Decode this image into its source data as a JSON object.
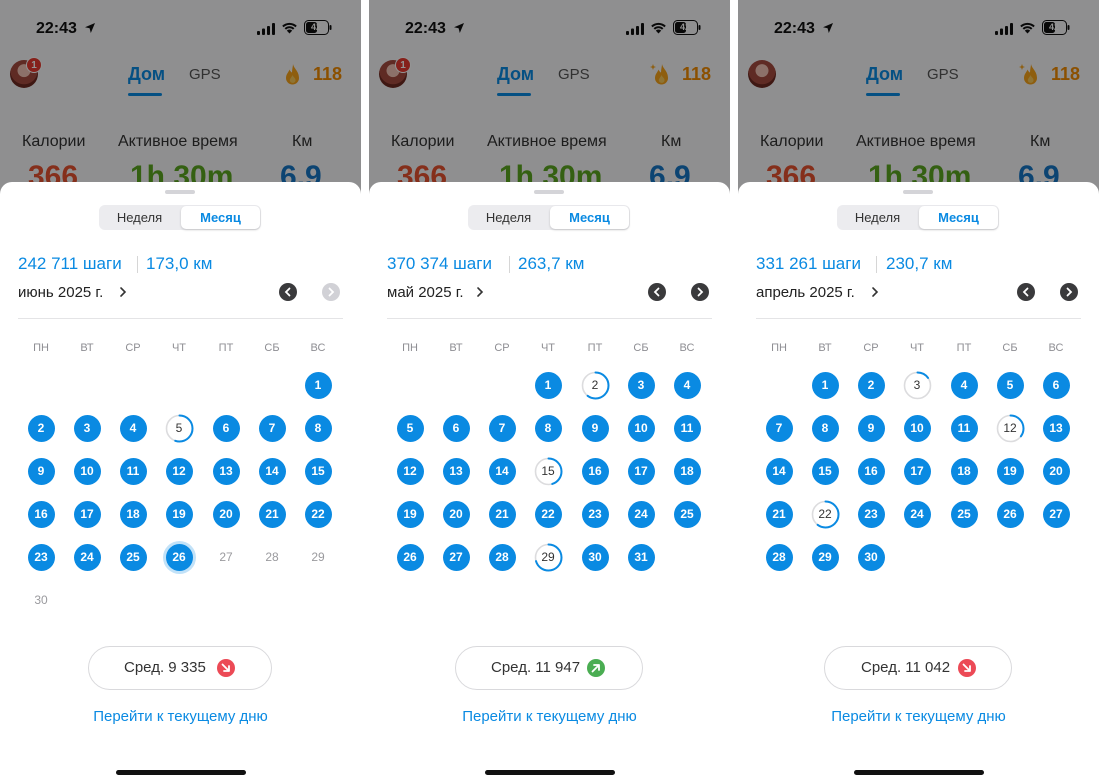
{
  "colors": {
    "accent": "#0a8ae2",
    "calories": "#e6512f",
    "active": "#5aa61f",
    "km": "#1676c4",
    "down_badge": "#ec4a56",
    "up_badge": "#4aad52"
  },
  "screens": [
    {
      "status": {
        "time": "22:43",
        "battery": "42"
      },
      "header": {
        "tab_home": "Дом",
        "tab_gps": "GPS",
        "streak": "118",
        "avatar_badge": "1",
        "flame_icon": "flame-icon"
      },
      "metrics": {
        "calories_label": "Калории",
        "calories_value": "366",
        "active_label": "Активное время",
        "active_value": "1h 30m",
        "km_label": "Км",
        "km_value": "6,9"
      },
      "sheet": {
        "seg_week": "Неделя",
        "seg_month": "Месяц",
        "steps": "242 711 шаги",
        "km": "173,0 км",
        "month": "июнь 2025 г.",
        "next_enabled": false,
        "weekdays": [
          "ПН",
          "ВТ",
          "СР",
          "ЧТ",
          "ПТ",
          "СБ",
          "ВС"
        ],
        "start_offset": 6,
        "days": [
          {
            "d": "1",
            "s": "done"
          },
          {
            "d": "2",
            "s": "done"
          },
          {
            "d": "3",
            "s": "done"
          },
          {
            "d": "4",
            "s": "done"
          },
          {
            "d": "5",
            "s": "partial",
            "p": 0.55
          },
          {
            "d": "6",
            "s": "done"
          },
          {
            "d": "7",
            "s": "done"
          },
          {
            "d": "8",
            "s": "done"
          },
          {
            "d": "9",
            "s": "done"
          },
          {
            "d": "10",
            "s": "done"
          },
          {
            "d": "11",
            "s": "done"
          },
          {
            "d": "12",
            "s": "done"
          },
          {
            "d": "13",
            "s": "done"
          },
          {
            "d": "14",
            "s": "done"
          },
          {
            "d": "15",
            "s": "done"
          },
          {
            "d": "16",
            "s": "done"
          },
          {
            "d": "17",
            "s": "done"
          },
          {
            "d": "18",
            "s": "done"
          },
          {
            "d": "19",
            "s": "done"
          },
          {
            "d": "20",
            "s": "done"
          },
          {
            "d": "21",
            "s": "done"
          },
          {
            "d": "22",
            "s": "done"
          },
          {
            "d": "23",
            "s": "done"
          },
          {
            "d": "24",
            "s": "done"
          },
          {
            "d": "25",
            "s": "done"
          },
          {
            "d": "26",
            "s": "today"
          },
          {
            "d": "27",
            "s": "future"
          },
          {
            "d": "28",
            "s": "future"
          },
          {
            "d": "29",
            "s": "future"
          },
          {
            "d": "30",
            "s": "future"
          }
        ],
        "avg": "Сред. 9 335",
        "trend": "down",
        "goto": "Перейти к текущему дню"
      }
    },
    {
      "status": {
        "time": "22:43",
        "battery": "42"
      },
      "header": {
        "tab_home": "Дом",
        "tab_gps": "GPS",
        "streak": "118",
        "avatar_badge": "1",
        "flame_icon": "flame-sparkle-icon"
      },
      "metrics": {
        "calories_label": "Калории",
        "calories_value": "366",
        "active_label": "Активное время",
        "active_value": "1h 30m",
        "km_label": "Км",
        "km_value": "6,9"
      },
      "sheet": {
        "seg_week": "Неделя",
        "seg_month": "Месяц",
        "steps": "370 374 шаги",
        "km": "263,7 км",
        "month": "май 2025 г.",
        "next_enabled": true,
        "weekdays": [
          "ПН",
          "ВТ",
          "СР",
          "ЧТ",
          "ПТ",
          "СБ",
          "ВС"
        ],
        "start_offset": 3,
        "days": [
          {
            "d": "1",
            "s": "done"
          },
          {
            "d": "2",
            "s": "partial",
            "p": 0.6
          },
          {
            "d": "3",
            "s": "done"
          },
          {
            "d": "4",
            "s": "done"
          },
          {
            "d": "5",
            "s": "done"
          },
          {
            "d": "6",
            "s": "done"
          },
          {
            "d": "7",
            "s": "done"
          },
          {
            "d": "8",
            "s": "done"
          },
          {
            "d": "9",
            "s": "done"
          },
          {
            "d": "10",
            "s": "done"
          },
          {
            "d": "11",
            "s": "done"
          },
          {
            "d": "12",
            "s": "done"
          },
          {
            "d": "13",
            "s": "done"
          },
          {
            "d": "14",
            "s": "done"
          },
          {
            "d": "15",
            "s": "partial",
            "p": 0.45
          },
          {
            "d": "16",
            "s": "done"
          },
          {
            "d": "17",
            "s": "done"
          },
          {
            "d": "18",
            "s": "done"
          },
          {
            "d": "19",
            "s": "done"
          },
          {
            "d": "20",
            "s": "done"
          },
          {
            "d": "21",
            "s": "done"
          },
          {
            "d": "22",
            "s": "done"
          },
          {
            "d": "23",
            "s": "done"
          },
          {
            "d": "24",
            "s": "done"
          },
          {
            "d": "25",
            "s": "done"
          },
          {
            "d": "26",
            "s": "done"
          },
          {
            "d": "27",
            "s": "done"
          },
          {
            "d": "28",
            "s": "done"
          },
          {
            "d": "29",
            "s": "partial",
            "p": 0.7
          },
          {
            "d": "30",
            "s": "done"
          },
          {
            "d": "31",
            "s": "done"
          }
        ],
        "avg": "Сред. 11 947",
        "trend": "up",
        "goto": "Перейти к текущему дню"
      }
    },
    {
      "status": {
        "time": "22:43",
        "battery": "42"
      },
      "header": {
        "tab_home": "Дом",
        "tab_gps": "GPS",
        "streak": "118",
        "avatar_badge": "",
        "flame_icon": "flame-sparkle-icon"
      },
      "metrics": {
        "calories_label": "Калории",
        "calories_value": "366",
        "active_label": "Активное время",
        "active_value": "1h 30m",
        "km_label": "Км",
        "km_value": "6,9"
      },
      "sheet": {
        "seg_week": "Неделя",
        "seg_month": "Месяц",
        "steps": "331 261 шаги",
        "km": "230,7 км",
        "month": "апрель 2025 г.",
        "next_enabled": true,
        "weekdays": [
          "ПН",
          "ВТ",
          "СР",
          "ЧТ",
          "ПТ",
          "СБ",
          "ВС"
        ],
        "start_offset": 1,
        "days": [
          {
            "d": "1",
            "s": "done"
          },
          {
            "d": "2",
            "s": "done"
          },
          {
            "d": "3",
            "s": "partial",
            "p": 0.15
          },
          {
            "d": "4",
            "s": "done"
          },
          {
            "d": "5",
            "s": "done"
          },
          {
            "d": "6",
            "s": "done"
          },
          {
            "d": "7",
            "s": "done"
          },
          {
            "d": "8",
            "s": "done"
          },
          {
            "d": "9",
            "s": "done"
          },
          {
            "d": "10",
            "s": "done"
          },
          {
            "d": "11",
            "s": "done"
          },
          {
            "d": "12",
            "s": "partial",
            "p": 0.35
          },
          {
            "d": "13",
            "s": "done"
          },
          {
            "d": "14",
            "s": "done"
          },
          {
            "d": "15",
            "s": "done"
          },
          {
            "d": "16",
            "s": "done"
          },
          {
            "d": "17",
            "s": "done"
          },
          {
            "d": "18",
            "s": "done"
          },
          {
            "d": "19",
            "s": "done"
          },
          {
            "d": "20",
            "s": "done"
          },
          {
            "d": "21",
            "s": "done"
          },
          {
            "d": "22",
            "s": "partial",
            "p": 0.6
          },
          {
            "d": "23",
            "s": "done"
          },
          {
            "d": "24",
            "s": "done"
          },
          {
            "d": "25",
            "s": "done"
          },
          {
            "d": "26",
            "s": "done"
          },
          {
            "d": "27",
            "s": "done"
          },
          {
            "d": "28",
            "s": "done"
          },
          {
            "d": "29",
            "s": "done"
          },
          {
            "d": "30",
            "s": "done"
          }
        ],
        "avg": "Сред. 11 042",
        "trend": "down",
        "goto": "Перейти к текущему дню"
      }
    }
  ]
}
